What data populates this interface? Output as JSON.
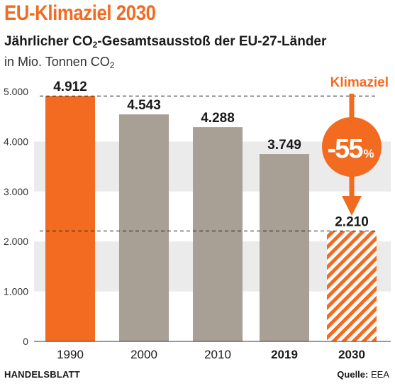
{
  "header": {
    "title": "EU-Klimaziel 2030",
    "subtitle_pre": "Jährlicher CO",
    "subtitle_sub": "2",
    "subtitle_post": "-Gesamtsausstoß der EU-27-Länder",
    "unit_pre": "in Mio. Tonnen CO",
    "unit_sub": "2"
  },
  "footer": {
    "publisher": "HANDELSBLATT",
    "source_label": "Quelle:",
    "source_value": "EEA"
  },
  "colors": {
    "accent": "#f26b21",
    "bar_gray": "#a89f95",
    "band": "#ebebeb",
    "text": "#1a1a1a"
  },
  "chart_data": {
    "type": "bar",
    "title": "Jährlicher CO2-Gesamtsausstoß der EU-27-Länder",
    "ylabel": "in Mio. Tonnen CO2",
    "categories": [
      "1990",
      "2000",
      "2010",
      "2019",
      "2030"
    ],
    "values": [
      4912,
      4543,
      4288,
      3749,
      2210
    ],
    "value_labels": [
      "4.912",
      "4.543",
      "4.288",
      "3.749",
      "2.210"
    ],
    "bold_categories": [
      "2019",
      "2030"
    ],
    "bar_styles": [
      "accent",
      "gray",
      "gray",
      "gray",
      "hatched"
    ],
    "ylim": [
      0,
      5000
    ],
    "yticks": [
      0,
      1000,
      2000,
      3000,
      4000,
      5000
    ],
    "ytick_labels": [
      "0",
      "1.000",
      "2.000",
      "3.000",
      "4.000",
      "5.000"
    ],
    "reference_lines": [
      4912,
      2210
    ],
    "annotation": {
      "label": "Klimaziel",
      "badge_text": "-55",
      "badge_suffix": "%"
    },
    "grid": "alternating horizontal bands"
  }
}
